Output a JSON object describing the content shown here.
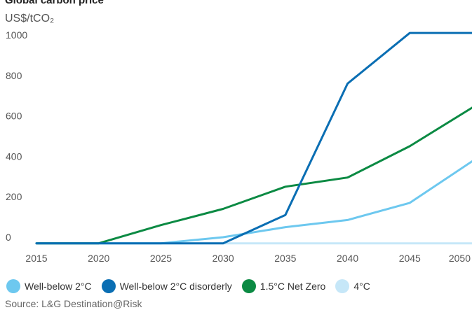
{
  "chart_data": {
    "type": "line",
    "title": "Global carbon price",
    "ylabel": "US$/tCO₂",
    "source": "Source: L&G Destination@Risk",
    "x": [
      2015,
      2020,
      2025,
      2030,
      2035,
      2040,
      2045,
      2050
    ],
    "x_ticks": [
      "2015",
      "2020",
      "2025",
      "2030",
      "2035",
      "2040",
      "2045",
      "2050"
    ],
    "y_ticks": [
      "0",
      "200",
      "400",
      "600",
      "800",
      "1000"
    ],
    "xlim": [
      2015,
      2050
    ],
    "ylim": [
      0,
      1000
    ],
    "grid": false,
    "legend_position": "bottom",
    "series": [
      {
        "name": "Well-below 2°C",
        "color": "#6dc8ef",
        "x": [
          2015,
          2020,
          2025,
          2030,
          2035,
          2040,
          2045,
          2050
        ],
        "values": [
          -30,
          -30,
          -30,
          0,
          50,
          85,
          170,
          375
        ]
      },
      {
        "name": "Well-below 2°C disorderly",
        "color": "#0a6eb3",
        "x": [
          2015,
          2020,
          2025,
          2030,
          2035,
          2040,
          2045,
          2047.5,
          2050
        ],
        "values": [
          -30,
          -30,
          -30,
          -30,
          110,
          760,
          1010,
          1010,
          1010
        ]
      },
      {
        "name": "1.5°C Net Zero",
        "color": "#0b8a43",
        "x": [
          2015,
          2020,
          2025,
          2030,
          2035,
          2040,
          2045,
          2050
        ],
        "values": [
          -30,
          -30,
          60,
          140,
          250,
          295,
          450,
          640
        ]
      },
      {
        "name": "4°C",
        "color": "#c6e7f8",
        "x": [
          2015,
          2020,
          2025,
          2030,
          2035,
          2040,
          2045,
          2050
        ],
        "values": [
          -30,
          -30,
          -30,
          -30,
          -30,
          -30,
          -30,
          -30
        ]
      }
    ]
  }
}
